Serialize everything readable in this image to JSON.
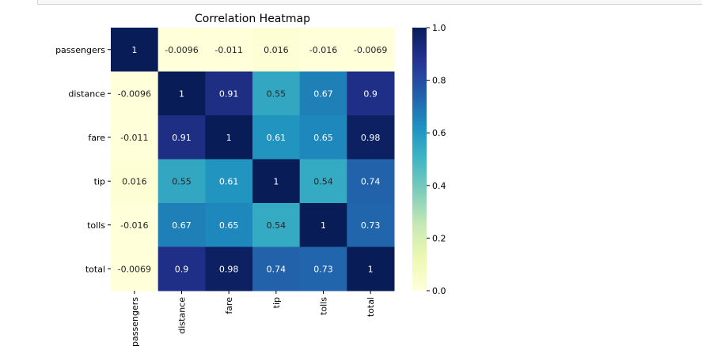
{
  "chart_data": {
    "type": "heatmap",
    "title": "Correlation Heatmap",
    "rows": [
      "passengers",
      "distance",
      "fare",
      "tip",
      "tolls",
      "total"
    ],
    "columns": [
      "passengers",
      "distance",
      "fare",
      "tip",
      "tolls",
      "total"
    ],
    "values": [
      [
        1,
        -0.0096,
        -0.011,
        0.016,
        -0.016,
        -0.0069
      ],
      [
        -0.0096,
        1,
        0.91,
        0.55,
        0.67,
        0.9
      ],
      [
        -0.011,
        0.91,
        1,
        0.61,
        0.65,
        0.98
      ],
      [
        0.016,
        0.55,
        0.61,
        1,
        0.54,
        0.74
      ],
      [
        -0.016,
        0.67,
        0.65,
        0.54,
        1,
        0.73
      ],
      [
        -0.0069,
        0.9,
        0.98,
        0.74,
        0.73,
        1
      ]
    ],
    "labels": [
      [
        "1",
        "-0.0096",
        "-0.011",
        "0.016",
        "-0.016",
        "-0.0069"
      ],
      [
        "-0.0096",
        "1",
        "0.91",
        "0.55",
        "0.67",
        "0.9"
      ],
      [
        "-0.011",
        "0.91",
        "1",
        "0.61",
        "0.65",
        "0.98"
      ],
      [
        "0.016",
        "0.55",
        "0.61",
        "1",
        "0.54",
        "0.74"
      ],
      [
        "-0.016",
        "0.67",
        "0.65",
        "0.54",
        "1",
        "0.73"
      ],
      [
        "-0.0069",
        "0.9",
        "0.98",
        "0.74",
        "0.73",
        "1"
      ]
    ],
    "colormap": "YlGnBu",
    "color_range": [
      0.0,
      1.0
    ],
    "colorbar_ticks": [
      "0.0",
      "0.2",
      "0.4",
      "0.6",
      "0.8",
      "1.0"
    ],
    "colorbar_tick_values": [
      0.0,
      0.2,
      0.4,
      0.6,
      0.8,
      1.0
    ],
    "grid": false,
    "colorbar_placement": "right"
  }
}
